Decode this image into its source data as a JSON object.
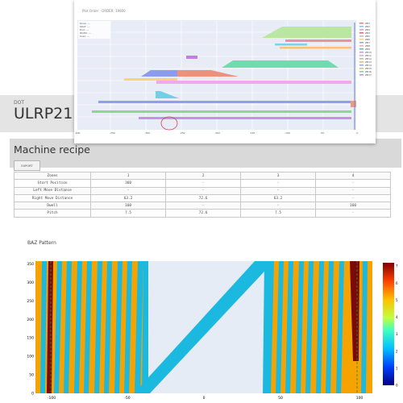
{
  "top_panel": {
    "title": "Plot Order - ORDER: 19800",
    "hover_lines": [
      "Zone: ---",
      "Start: ---",
      "End: ---",
      "Width: ---",
      "Scan: ---"
    ],
    "x_ticks": [
      "-400",
      "-350",
      "-300",
      "-250",
      "-200",
      "-150",
      "-100",
      "-50",
      "0"
    ],
    "legend_items": [
      "ZB1",
      "ZB2",
      "ZB3",
      "ZB4",
      "ZB5",
      "ZB6",
      "ZB7",
      "ZB8",
      "ZB9",
      "ZB10",
      "ZB11",
      "ZB12",
      "ZB13",
      "ZB14",
      "ZB15",
      "ZB16",
      "ZB17"
    ],
    "legend_colors": [
      "#f08080",
      "#8fbfe0",
      "#d9a0d0",
      "#e07070",
      "#c0c0c0",
      "#ffd08a",
      "#9aa0e0",
      "#f0b0b0",
      "#60c0c0",
      "#c0a0e0",
      "#f0a0c0",
      "#a0d0a0",
      "#ffb070",
      "#90b0f0",
      "#e0c070",
      "#80d0b0",
      "#d090d0"
    ]
  },
  "dot": {
    "label": "DOT",
    "value": "ULRP21"
  },
  "recipe": {
    "title": "Machine recipe",
    "export_label": "EXPORT",
    "rows": [
      [
        "Zones",
        "1",
        "2",
        "3",
        "4"
      ],
      [
        "Start Position",
        "360",
        "-",
        "-",
        "-"
      ],
      [
        "Left Move Distance",
        "-",
        "-",
        "-",
        "-"
      ],
      [
        "Right Move Distance",
        "63.2",
        "72.6",
        "63.2",
        "-"
      ],
      [
        "Dwell",
        "160",
        "-",
        "-",
        "160"
      ],
      [
        "Pitch",
        "7.5",
        "72.6",
        "7.5",
        "-"
      ]
    ]
  },
  "baz": {
    "title": "BAZ Pattern",
    "x_ticks": [
      "-100",
      "-50",
      "0",
      "50",
      "100"
    ],
    "y_ticks": [
      "0",
      "50",
      "100",
      "150",
      "200",
      "250",
      "300",
      "350"
    ],
    "colorbar_ticks": [
      "0",
      "1",
      "2",
      "3",
      "4",
      "5",
      "6",
      "7"
    ]
  }
}
